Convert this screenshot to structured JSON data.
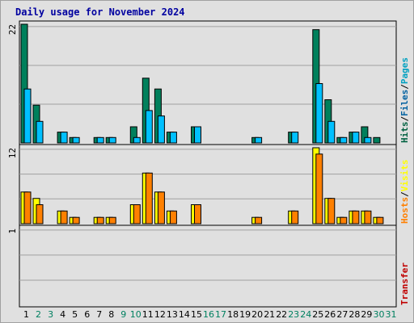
{
  "chart_data": {
    "type": "bar",
    "title": "Daily usage for November 2024",
    "categories": [
      "1",
      "2",
      "3",
      "4",
      "5",
      "6",
      "7",
      "8",
      "9",
      "10",
      "11",
      "12",
      "13",
      "14",
      "15",
      "16",
      "17",
      "18",
      "19",
      "20",
      "21",
      "22",
      "23",
      "24",
      "25",
      "26",
      "27",
      "28",
      "29",
      "30",
      "31"
    ],
    "weekend_days": [
      "2",
      "3",
      "9",
      "10",
      "16",
      "17",
      "23",
      "24",
      "30",
      "31"
    ],
    "panels": [
      {
        "label_parts": [
          "Hits",
          "/",
          "Files",
          "/",
          "Pages"
        ],
        "label_colors": [
          "#006040",
          "#000000",
          "#0060a0",
          "#000000",
          "#00a0c0"
        ],
        "ymax_label": "22",
        "ylim": [
          0,
          22
        ],
        "series": [
          {
            "name": "Hits",
            "color": "#00805c",
            "values": [
              22,
              7,
              0,
              2,
              1,
              0,
              1,
              1,
              0,
              3,
              12,
              10,
              2,
              0,
              3,
              0,
              0,
              0,
              0,
              1,
              0,
              0,
              2,
              0,
              21,
              8,
              1,
              2,
              3,
              1,
              0
            ]
          },
          {
            "name": "Files",
            "color": "#00c0ff",
            "values": [
              10,
              4,
              0,
              2,
              1,
              0,
              1,
              1,
              0,
              1,
              6,
              5,
              2,
              0,
              3,
              0,
              0,
              0,
              0,
              1,
              0,
              0,
              2,
              0,
              11,
              4,
              1,
              2,
              1,
              0,
              0
            ]
          }
        ]
      },
      {
        "label_parts": [
          "Hosts",
          "/",
          "Visits"
        ],
        "label_colors": [
          "#ff8000",
          "#000000",
          "#ffff00"
        ],
        "ymax_label": "12",
        "ylim": [
          0,
          12
        ],
        "series": [
          {
            "name": "Visits",
            "color": "#ffff00",
            "values": [
              5,
              4,
              0,
              2,
              1,
              0,
              1,
              1,
              0,
              3,
              8,
              5,
              2,
              0,
              3,
              0,
              0,
              0,
              0,
              1,
              0,
              0,
              2,
              0,
              12,
              4,
              1,
              2,
              2,
              1,
              0
            ]
          },
          {
            "name": "Hosts",
            "color": "#ff8000",
            "values": [
              5,
              3,
              0,
              2,
              1,
              0,
              1,
              1,
              0,
              3,
              8,
              5,
              2,
              0,
              3,
              0,
              0,
              0,
              0,
              1,
              0,
              0,
              2,
              0,
              11,
              4,
              1,
              2,
              2,
              1,
              0
            ]
          }
        ]
      },
      {
        "label_parts": [
          "Transfer"
        ],
        "label_colors": [
          "#c00000"
        ],
        "ymax_label": "1",
        "ylim": [
          0,
          1
        ],
        "series": [
          {
            "name": "Transfer",
            "color": "#c00000",
            "values": [
              0,
              0,
              0,
              0,
              0,
              0,
              0,
              0,
              0,
              0,
              0,
              0,
              0,
              0,
              0,
              0,
              0,
              0,
              0,
              0,
              0,
              0,
              0,
              0,
              0,
              0,
              0,
              0,
              0,
              0,
              0
            ]
          }
        ]
      }
    ]
  }
}
